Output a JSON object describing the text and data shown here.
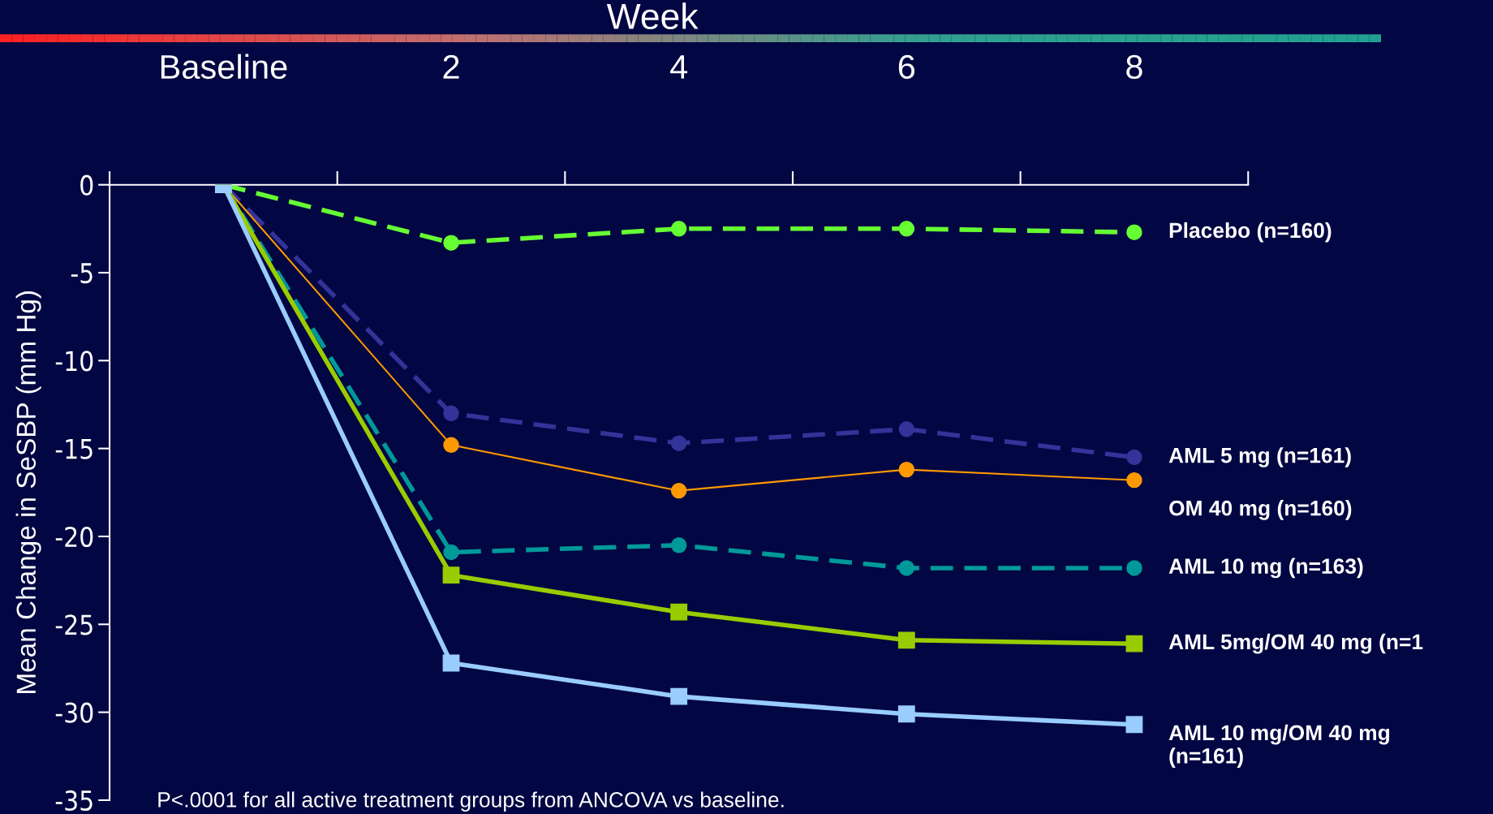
{
  "chart_data": {
    "type": "line",
    "xlabel": "Week",
    "ylabel": "Mean Change in SeSBP (mm Hg)",
    "categories": [
      "Baseline",
      "2",
      "4",
      "6",
      "8"
    ],
    "ylim": [
      -35,
      0
    ],
    "yticks": [
      0,
      -5,
      -10,
      -15,
      -20,
      -25,
      -30,
      -35
    ],
    "grid": false,
    "series": [
      {
        "name": "Placebo (n=160)",
        "color": "#66ff33",
        "marker": "circle",
        "line_style": "dashed",
        "values": [
          0,
          -3.3,
          -2.5,
          -2.5,
          -2.7
        ]
      },
      {
        "name": "AML 5 mg (n=161)",
        "color": "#333399",
        "marker": "circle",
        "line_style": "dashed",
        "values": [
          0,
          -13.0,
          -14.7,
          -13.9,
          -15.5
        ]
      },
      {
        "name": "OM 40 mg (n=160)",
        "color": "#ff9900",
        "marker": "circle",
        "line_style": "solid",
        "values": [
          0,
          -14.8,
          -17.4,
          -16.2,
          -16.8
        ]
      },
      {
        "name": "AML 10 mg (n=163)",
        "color": "#009999",
        "marker": "circle",
        "line_style": "dashed",
        "values": [
          0,
          -20.9,
          -20.5,
          -21.8,
          -21.8
        ]
      },
      {
        "name": "AML 5mg/OM 40 mg (n=1",
        "color": "#99cc00",
        "marker": "square",
        "line_style": "solid",
        "values": [
          0,
          -22.2,
          -24.3,
          -25.9,
          -26.1
        ]
      },
      {
        "name": "AML 10 mg/OM 40 mg\n(n=161)",
        "color": "#99ccff",
        "marker": "square",
        "line_style": "solid",
        "values": [
          0,
          -27.2,
          -29.1,
          -30.1,
          -30.7
        ]
      }
    ],
    "annotations": [
      "P<.0001 for all active treatment groups from ANCOVA vs baseline."
    ]
  }
}
